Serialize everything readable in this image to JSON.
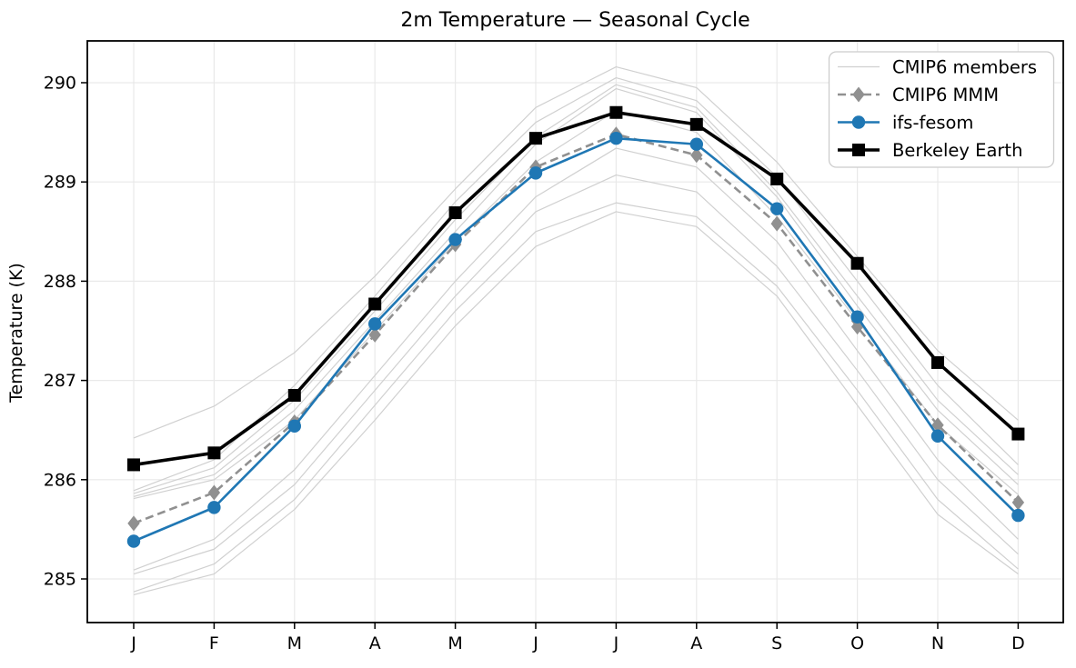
{
  "title": "2m Temperature — Seasonal Cycle",
  "ylabel": "Temperature (K)",
  "legend": {
    "entries": [
      "CMIP6 members",
      "CMIP6 MMM",
      "ifs-fesom",
      "Berkeley Earth"
    ]
  },
  "colors": {
    "ensemble": "#d0d0d0",
    "mmm": "#909090",
    "ifs_fesom": "#1f77b4",
    "berkeley": "#000000",
    "grid": "#e9e9e9",
    "spine": "#000000",
    "legend_border": "#cccccc",
    "background": "#ffffff"
  },
  "chart_data": {
    "type": "line",
    "title": "2m Temperature — Seasonal Cycle",
    "xlabel": "",
    "ylabel": "Temperature (K)",
    "categories": [
      "J",
      "F",
      "M",
      "A",
      "M",
      "J",
      "J",
      "A",
      "S",
      "O",
      "N",
      "D"
    ],
    "yticks": [
      285,
      286,
      287,
      288,
      289,
      290
    ],
    "ylim": [
      284.56,
      290.42
    ],
    "grid": true,
    "legend_position": "upper right",
    "series": [
      {
        "name": "CMIP6 members",
        "role": "ensemble",
        "color": "#d0d0d0",
        "style": "solid",
        "marker": "none",
        "line_width": 1.2,
        "members": [
          [
            286.42,
            286.74,
            287.28,
            288.05,
            288.93,
            289.75,
            290.16,
            289.95,
            289.2,
            288.25,
            287.3,
            286.6
          ],
          [
            285.89,
            286.2,
            286.95,
            287.85,
            288.8,
            289.6,
            290.05,
            289.82,
            289.05,
            288.0,
            286.95,
            286.15
          ],
          [
            285.86,
            286.12,
            286.8,
            287.7,
            288.62,
            289.45,
            289.98,
            289.75,
            288.9,
            287.85,
            286.8,
            286.05
          ],
          [
            285.83,
            286.05,
            286.7,
            287.6,
            288.5,
            289.38,
            289.94,
            289.7,
            288.85,
            287.75,
            286.7,
            285.95
          ],
          [
            285.81,
            286.0,
            286.6,
            287.5,
            288.4,
            289.2,
            289.72,
            289.5,
            288.65,
            287.6,
            286.55,
            285.85
          ],
          [
            285.09,
            285.4,
            286.1,
            287.05,
            288.0,
            288.85,
            289.34,
            289.15,
            288.4,
            287.3,
            286.2,
            285.4
          ],
          [
            285.05,
            285.3,
            285.95,
            286.9,
            287.85,
            288.7,
            289.07,
            288.9,
            288.15,
            287.1,
            286.0,
            285.25
          ],
          [
            284.87,
            285.15,
            285.8,
            286.75,
            287.7,
            288.5,
            288.79,
            288.65,
            287.95,
            286.9,
            285.8,
            285.1
          ],
          [
            284.84,
            285.05,
            285.7,
            286.6,
            287.55,
            288.35,
            288.7,
            288.55,
            287.85,
            286.75,
            285.65,
            285.05
          ]
        ]
      },
      {
        "name": "CMIP6 MMM",
        "role": "mean",
        "color": "#909090",
        "style": "dashed",
        "marker": "diamond",
        "line_width": 2.6,
        "values": [
          285.56,
          285.87,
          286.58,
          287.46,
          288.37,
          289.15,
          289.48,
          289.27,
          288.58,
          287.54,
          286.55,
          285.77
        ]
      },
      {
        "name": "ifs-fesom",
        "role": "model",
        "color": "#1f77b4",
        "style": "solid",
        "marker": "circle",
        "line_width": 2.6,
        "values": [
          285.38,
          285.72,
          286.54,
          287.57,
          288.42,
          289.09,
          289.44,
          289.38,
          288.73,
          287.64,
          286.44,
          285.64
        ]
      },
      {
        "name": "Berkeley Earth",
        "role": "observation",
        "color": "#000000",
        "style": "solid",
        "marker": "square",
        "line_width": 3.6,
        "values": [
          286.15,
          286.27,
          286.85,
          287.77,
          288.69,
          289.44,
          289.7,
          289.58,
          289.03,
          288.18,
          287.18,
          286.46
        ]
      }
    ]
  }
}
